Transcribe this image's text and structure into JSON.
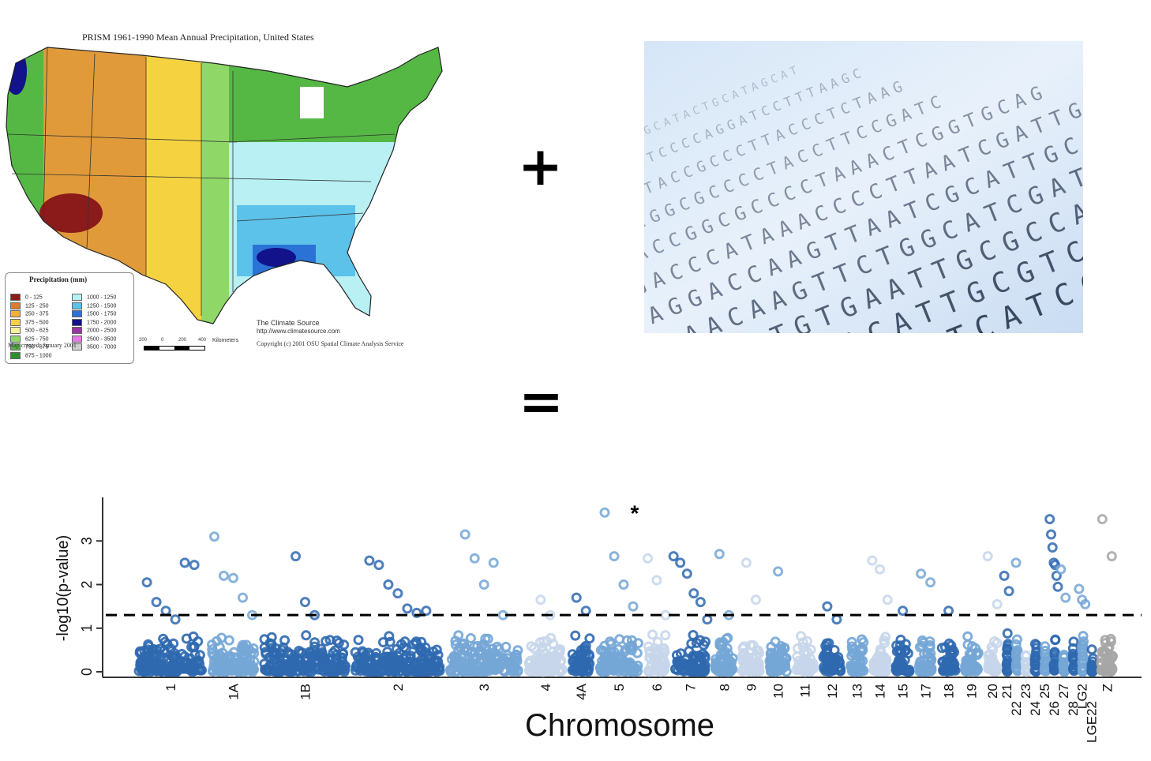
{
  "map": {
    "title": "PRISM 1961-1990 Mean Annual Precipitation, United States",
    "legend_title": "Precipitation (mm)",
    "legend": [
      {
        "label": "0 - 125",
        "color": "#8b1a1a"
      },
      {
        "label": "125 - 250",
        "color": "#e07a2a"
      },
      {
        "label": "250 - 375",
        "color": "#f2b233"
      },
      {
        "label": "375 - 500",
        "color": "#f5d340"
      },
      {
        "label": "500 - 625",
        "color": "#f7f29a"
      },
      {
        "label": "625 - 750",
        "color": "#8fd868"
      },
      {
        "label": "750 - 875",
        "color": "#55b844"
      },
      {
        "label": "875 - 1000",
        "color": "#2f8f2f"
      },
      {
        "label": "1000 - 1250",
        "color": "#b8f0f4"
      },
      {
        "label": "1250 - 1500",
        "color": "#5cc2ea"
      },
      {
        "label": "1500 - 1750",
        "color": "#2a72d6"
      },
      {
        "label": "1750 - 2000",
        "color": "#12128a"
      },
      {
        "label": "2000 - 2500",
        "color": "#9a33a8"
      },
      {
        "label": "2500 - 3500",
        "color": "#e27ae8"
      },
      {
        "label": "3500 - 7000",
        "color": "#cfcfcf"
      }
    ],
    "created": "Map created: January 2001",
    "scale_ticks": [
      "200",
      "0",
      "200",
      "400"
    ],
    "scale_unit": "Kilometers",
    "source_name": "The Climate Source",
    "source_url": "http://www.climatesource.com",
    "copyright": "Copyright (c) 2001 OSU Spatial Climate Analysis Service"
  },
  "operators": {
    "plus": "+",
    "equals": "="
  },
  "dna": {
    "rows": [
      "GAAACTTGGCATACTGCATAGCAT",
      "TTGATTTCCCCAGGATCCTTTAAGC",
      "TACCTACCGCCCTTACCCTCTAAG",
      "ACCGGCGCCCCTACCTTCCGATC",
      "CACCGGCGCCCCTAAACTCGGTGCAG",
      "GACCCATAAACCCCTTAATCGATTG",
      "AGGACCAAGTTAATCGCATTGCAGA",
      "AAACAAGTTCTGGCATCGATTGCG",
      "TTTCTGTGAATTGCGCCATGAC",
      "GTGTGAACATTGCGTCATGGA",
      "CACATTGCGTCATCGAT"
    ]
  },
  "chart_data": {
    "type": "scatter",
    "title": "",
    "xlabel": "Chromosome",
    "ylabel": "-log10(p-value)",
    "ylim": [
      0,
      4
    ],
    "yticks": [
      "0",
      "1",
      "2",
      "3"
    ],
    "threshold": 1.3,
    "annotation": "*",
    "chromosomes": [
      "1",
      "1A",
      "1B",
      "2",
      "3",
      "4",
      "4A",
      "5",
      "6",
      "7",
      "8",
      "9",
      "10",
      "11",
      "12",
      "13",
      "14",
      "15",
      "17",
      "18",
      "19",
      "20",
      "21",
      "22",
      "23",
      "24",
      "25",
      "26",
      "27",
      "28",
      "LG2",
      "LGE22",
      "Z"
    ],
    "colors": [
      "#2f69b0",
      "#74a6d6",
      "#2f69b0",
      "#2f69b0",
      "#74a6d6",
      "#c6d6ea",
      "#2f69b0",
      "#74a6d6",
      "#c6d6ea",
      "#2f69b0",
      "#74a6d6",
      "#c6d6ea",
      "#74a6d6",
      "#c6d6ea",
      "#2f69b0",
      "#74a6d6",
      "#c6d6ea",
      "#2f69b0",
      "#74a6d6",
      "#2f69b0",
      "#74a6d6",
      "#c6d6ea",
      "#2f69b0",
      "#74a6d6",
      "#c6d6ea",
      "#2f69b0",
      "#74a6d6",
      "#2f69b0",
      "#74a6d6",
      "#2f69b0",
      "#74a6d6",
      "#2f69b0",
      "#a6a6a6"
    ],
    "top_points": [
      {
        "chromosome": "1",
        "values": [
          2.05,
          1.6,
          1.4,
          1.2,
          2.5,
          2.45
        ]
      },
      {
        "chromosome": "1A",
        "values": [
          3.1,
          2.2,
          2.15,
          1.7,
          1.3
        ]
      },
      {
        "chromosome": "1B",
        "values": [
          2.65,
          1.6,
          1.3
        ]
      },
      {
        "chromosome": "2",
        "values": [
          2.55,
          2.45,
          2.0,
          1.8,
          1.45,
          1.35,
          1.4
        ]
      },
      {
        "chromosome": "3",
        "values": [
          3.15,
          2.6,
          2.0,
          2.5,
          1.3
        ]
      },
      {
        "chromosome": "4",
        "values": [
          1.65,
          1.3
        ]
      },
      {
        "chromosome": "4A",
        "values": [
          1.7,
          1.4
        ]
      },
      {
        "chromosome": "5",
        "values": [
          3.65,
          2.65,
          2.0,
          1.5
        ]
      },
      {
        "chromosome": "6",
        "values": [
          2.6,
          2.1,
          1.3
        ]
      },
      {
        "chromosome": "7",
        "values": [
          2.65,
          2.5,
          2.25,
          1.8,
          1.6,
          1.2
        ]
      },
      {
        "chromosome": "8",
        "values": [
          2.7,
          1.3
        ]
      },
      {
        "chromosome": "9",
        "values": [
          2.5,
          1.65
        ]
      },
      {
        "chromosome": "10",
        "values": [
          2.3
        ]
      },
      {
        "chromosome": "12",
        "values": [
          1.5,
          1.2
        ]
      },
      {
        "chromosome": "14",
        "values": [
          2.55,
          2.35,
          1.65
        ]
      },
      {
        "chromosome": "15",
        "values": [
          1.4
        ]
      },
      {
        "chromosome": "17",
        "values": [
          2.25,
          2.05
        ]
      },
      {
        "chromosome": "18",
        "values": [
          1.4
        ]
      },
      {
        "chromosome": "20",
        "values": [
          2.65,
          1.55
        ]
      },
      {
        "chromosome": "21",
        "values": [
          2.2,
          1.85
        ]
      },
      {
        "chromosome": "22",
        "values": [
          2.5
        ]
      },
      {
        "chromosome": "26",
        "values": [
          3.5,
          3.15,
          2.85,
          2.5,
          2.45,
          2.2,
          1.95
        ]
      },
      {
        "chromosome": "27",
        "values": [
          2.35,
          1.7
        ]
      },
      {
        "chromosome": "LG2",
        "values": [
          1.9,
          1.65,
          1.55
        ]
      },
      {
        "chromosome": "Z",
        "values": [
          3.5,
          2.65
        ]
      }
    ]
  }
}
